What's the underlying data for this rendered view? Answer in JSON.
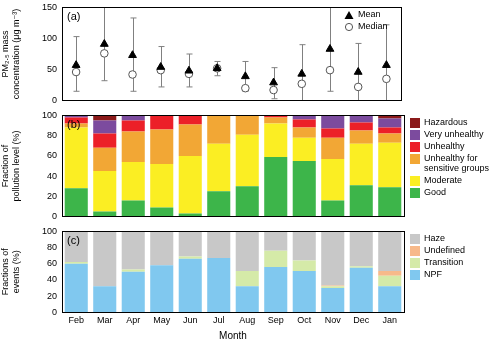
{
  "chart_data": [
    {
      "type": "scatter",
      "annotation": "(a)",
      "ylabel": [
        "PM₂.₅ mass",
        "concentration (μg m⁻³)"
      ],
      "categories": [
        "Feb",
        "Mar",
        "Apr",
        "May",
        "Jun",
        "Jul",
        "Aug",
        "Sep",
        "Oct",
        "Nov",
        "Dec",
        "Jan"
      ],
      "series": [
        {
          "name": "Mean",
          "color": "#000000",
          "marker": "triangle",
          "values": [
            57,
            91,
            73,
            54,
            48,
            52,
            39,
            29,
            43,
            83,
            46,
            57
          ],
          "error_low": [
            15,
            32,
            15,
            22,
            22,
            40,
            15,
            3,
            0,
            15,
            0,
            -5
          ],
          "error_high": [
            103,
            150,
            133,
            87,
            75,
            63,
            63,
            53,
            90,
            150,
            92,
            122
          ]
        },
        {
          "name": "Median",
          "color": "#555555",
          "marker": "open_circle",
          "values": [
            46,
            76,
            42,
            49,
            43,
            52,
            20,
            17,
            27,
            49,
            22,
            35
          ]
        }
      ],
      "ylim": [
        0,
        150
      ],
      "yticks": [
        0,
        50,
        100,
        150
      ],
      "grid": false,
      "legend": "upper right",
      "tick_labels": "y"
    },
    {
      "type": "bar",
      "annotation": "(b)",
      "ylabel": [
        "Fraction of",
        "pollution level (%)"
      ],
      "categories": [
        "Feb",
        "Mar",
        "Apr",
        "May",
        "Jun",
        "Jul",
        "Aug",
        "Sep",
        "Oct",
        "Nov",
        "Dec",
        "Jan"
      ],
      "series": [
        {
          "name": "Good",
          "color": "#3db54a",
          "values": [
            28,
            5,
            16,
            9,
            3,
            25,
            30,
            59,
            55,
            16,
            31,
            29
          ]
        },
        {
          "name": "Moderate",
          "color": "#fbee23",
          "values": [
            60,
            40,
            38,
            43,
            57,
            47,
            51,
            33,
            23,
            41,
            41,
            44
          ]
        },
        {
          "name": "Unhealthy for sensitive groups",
          "color": "#f2a735",
          "values": [
            4,
            23,
            30,
            34,
            31,
            28,
            19,
            6,
            10,
            21,
            13,
            9
          ]
        },
        {
          "name": "Unhealthy",
          "color": "#ec2028",
          "values": [
            6,
            14,
            11,
            14,
            9,
            0,
            0,
            2,
            8,
            9,
            8,
            6
          ]
        },
        {
          "name": "Very unhealthy",
          "color": "#7c4b9e",
          "values": [
            2,
            13,
            5,
            0,
            0,
            0,
            0,
            0,
            4,
            13,
            7,
            9
          ]
        },
        {
          "name": "Hazardous",
          "color": "#8b1a1a",
          "values": [
            0,
            5,
            0,
            0,
            0,
            0,
            0,
            0,
            0,
            0,
            0,
            3
          ]
        }
      ],
      "ylim": [
        0,
        100
      ],
      "yticks": [
        0,
        20,
        40,
        60,
        80,
        100
      ],
      "stacked": true,
      "grid": false,
      "legend": "right",
      "tick_labels": "y"
    },
    {
      "type": "bar",
      "annotation": "(c)",
      "ylabel": [
        "Fractions of",
        "events (%)"
      ],
      "xlabel": "Month",
      "categories": [
        "Feb",
        "Mar",
        "Apr",
        "May",
        "Jun",
        "Jul",
        "Aug",
        "Sep",
        "Oct",
        "Nov",
        "Dec",
        "Jan"
      ],
      "series": [
        {
          "name": "NPF",
          "color": "#80c8ef",
          "values": [
            60,
            32,
            50,
            58,
            66,
            67,
            32,
            56,
            51,
            30,
            55,
            32
          ]
        },
        {
          "name": "Transition",
          "color": "#d5eaa8",
          "values": [
            2,
            0,
            3,
            0,
            3,
            0,
            19,
            20,
            13,
            2,
            2,
            13
          ]
        },
        {
          "name": "Undefined",
          "color": "#f7b98a",
          "values": [
            0,
            0,
            0,
            0,
            0,
            0,
            0,
            0,
            0,
            1,
            0,
            6
          ]
        },
        {
          "name": "Haze",
          "color": "#c8c8c8",
          "values": [
            38,
            68,
            47,
            42,
            31,
            33,
            49,
            24,
            36,
            67,
            43,
            49
          ]
        }
      ],
      "ylim": [
        0,
        100
      ],
      "yticks": [
        0,
        20,
        40,
        60,
        80,
        100
      ],
      "stacked": true,
      "grid": false,
      "legend": "right",
      "tick_labels": true
    }
  ]
}
